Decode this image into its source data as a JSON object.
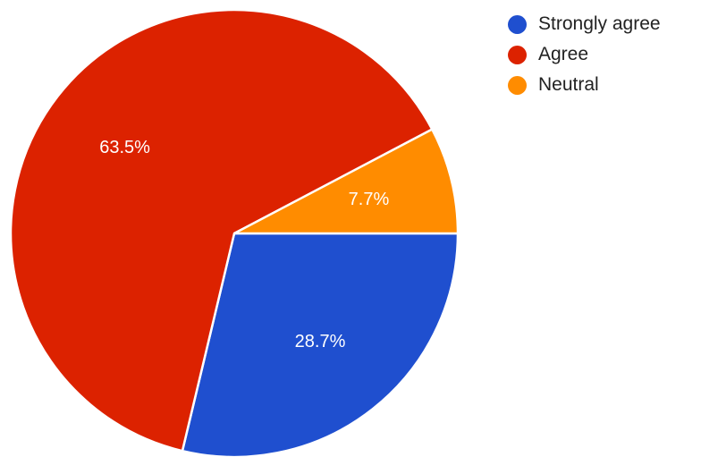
{
  "chart_data": {
    "type": "pie",
    "slices": [
      {
        "label": "Strongly agree",
        "value": 28.7,
        "display": "28.7%",
        "color": "#1f4fcf"
      },
      {
        "label": "Agree",
        "value": 63.5,
        "display": "63.5%",
        "color": "#dc2200"
      },
      {
        "label": "Neutral",
        "value": 7.7,
        "display": "7.7%",
        "color": "#ff8c00"
      }
    ],
    "legend_position": "top-right",
    "start_angle_deg": 90,
    "direction": "clockwise"
  }
}
